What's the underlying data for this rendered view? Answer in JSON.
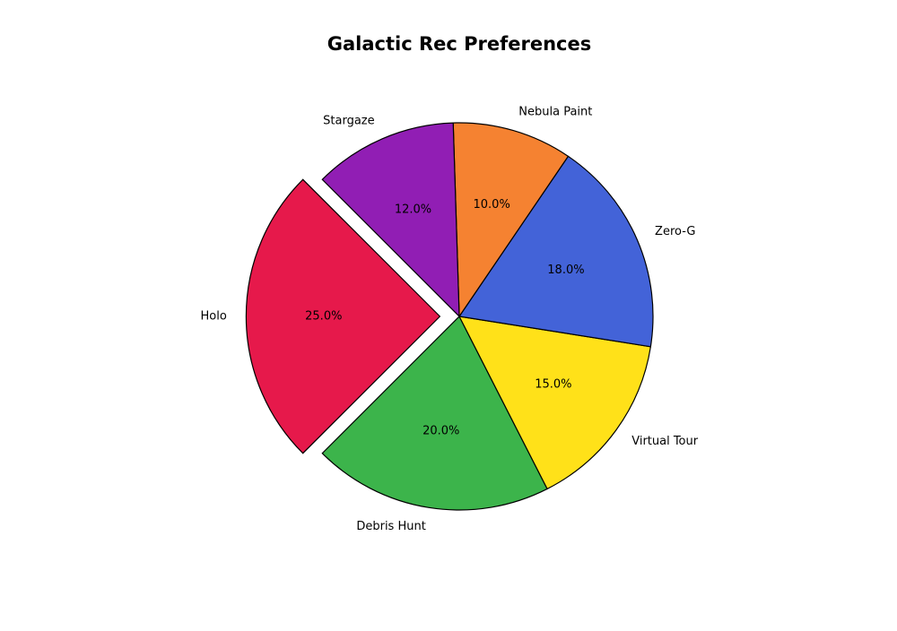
{
  "chart_data": {
    "type": "pie",
    "title": "Galactic Rec Preferences",
    "start_angle_deg": 135,
    "direction": "counterclockwise",
    "slices": [
      {
        "label": "Holo",
        "value": 25.0,
        "pct_text": "25.0%",
        "color": "#e6194b",
        "exploded": true
      },
      {
        "label": "Debris Hunt",
        "value": 20.0,
        "pct_text": "20.0%",
        "color": "#3cb44b",
        "exploded": false
      },
      {
        "label": "Virtual Tour",
        "value": 15.0,
        "pct_text": "15.0%",
        "color": "#ffe119",
        "exploded": false
      },
      {
        "label": "Zero-G",
        "value": 18.0,
        "pct_text": "18.0%",
        "color": "#4363d8",
        "exploded": false
      },
      {
        "label": "Nebula Paint",
        "value": 10.0,
        "pct_text": "10.0%",
        "color": "#f58231",
        "exploded": false
      },
      {
        "label": "Stargaze",
        "value": 12.0,
        "pct_text": "12.0%",
        "color": "#911eb4",
        "exploded": false
      }
    ]
  }
}
